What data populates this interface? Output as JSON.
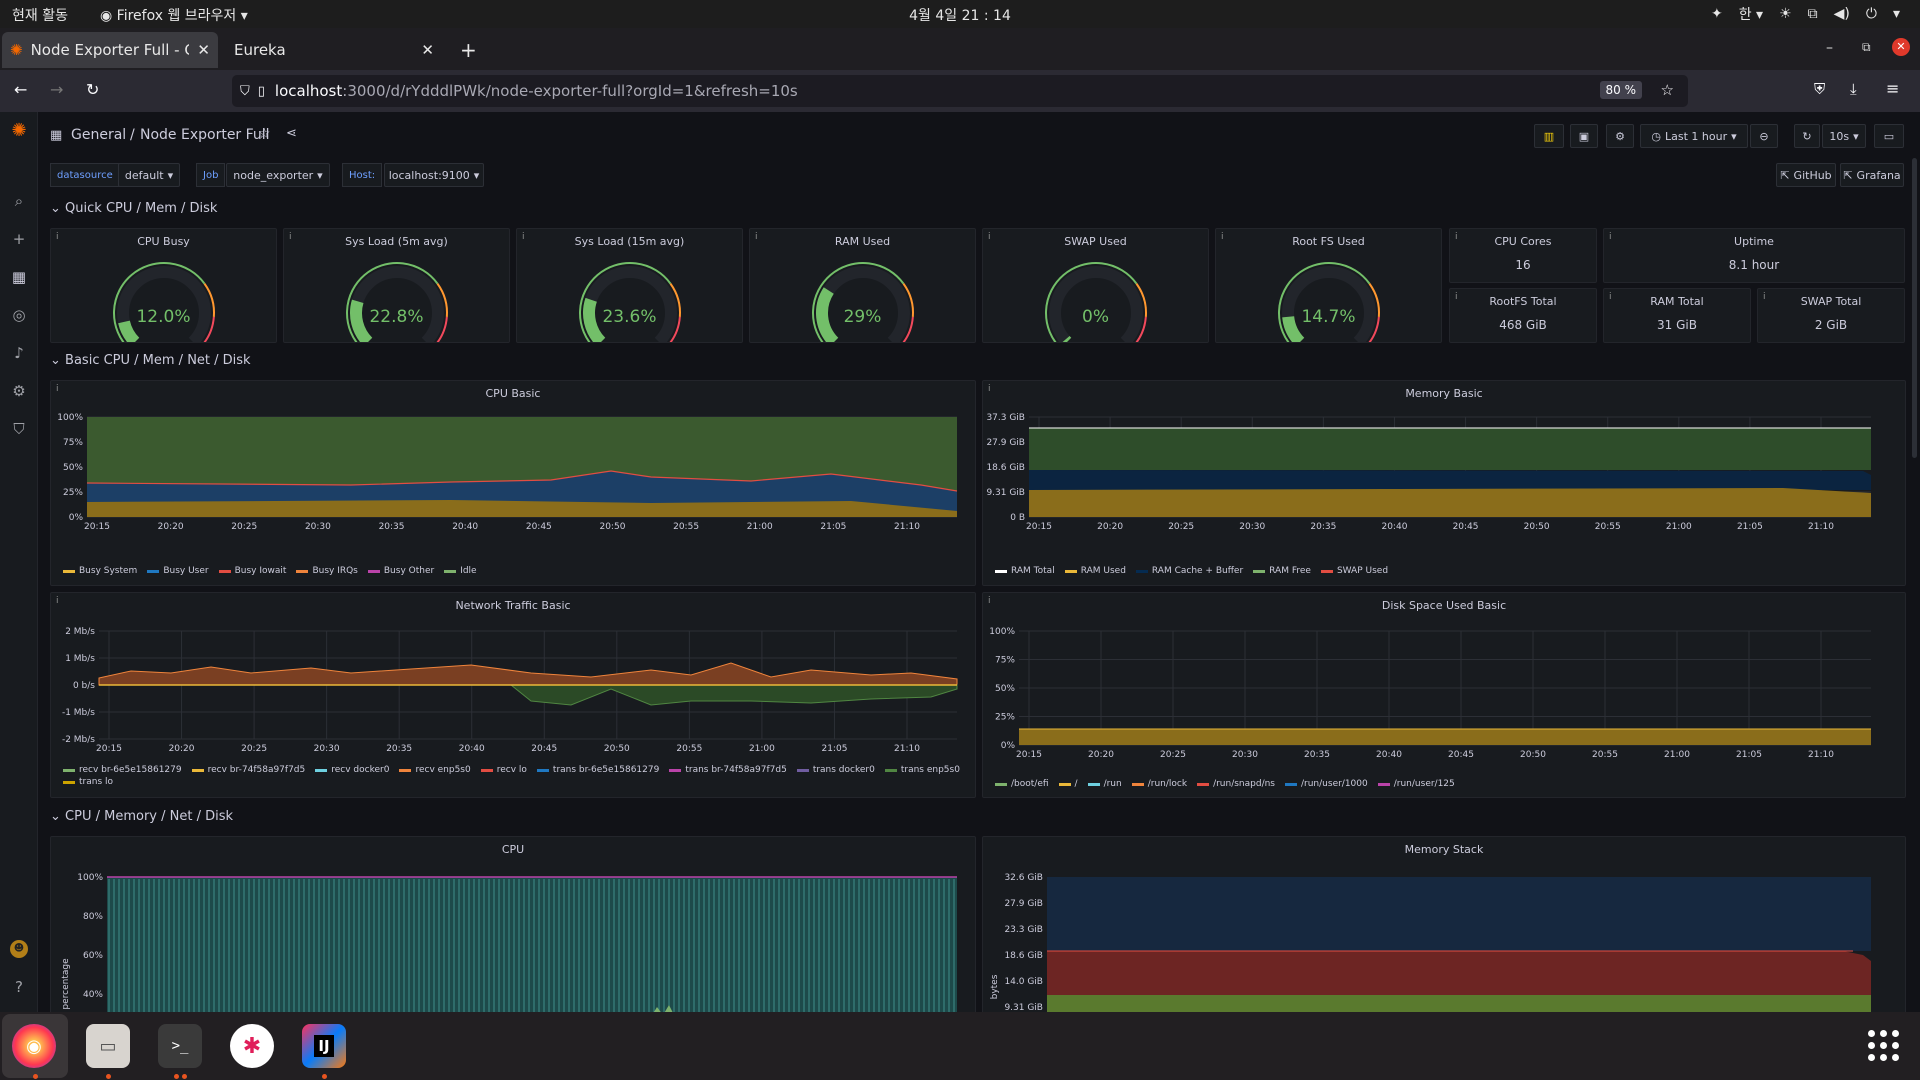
{
  "os": {
    "activities": "현재 활동",
    "app_menu": "Firefox 웹 브라우저",
    "clock": "4월 4일  21 : 14",
    "ime": "한"
  },
  "browser": {
    "tabs": [
      {
        "label": "Node Exporter Full - Graf"
      },
      {
        "label": "Eureka"
      }
    ],
    "url_host": "localhost",
    "url_path": ":3000/d/rYdddlPWk/node-exporter-full?orgId=1&refresh=10s",
    "zoom": "80 %"
  },
  "dashboard": {
    "breadcrumb_folder": "General",
    "breadcrumb_sep": "/",
    "title": "Node Exporter Full",
    "time_range": "Last 1 hour",
    "refresh": "10s",
    "links": {
      "github": "GitHub",
      "grafana": "Grafana"
    },
    "vars": {
      "datasource_label": "datasource",
      "datasource_value": "default",
      "job_label": "Job",
      "job_value": "node_exporter",
      "host_label": "Host:",
      "host_value": "localhost:9100"
    },
    "rows": {
      "r1": "Quick CPU / Mem / Disk",
      "r2": "Basic CPU / Mem / Net / Disk",
      "r3": "CPU / Memory / Net / Disk"
    },
    "gauges": [
      {
        "title": "CPU Busy",
        "value": "12.0%",
        "fraction": 0.12,
        "color": "#73bf69"
      },
      {
        "title": "Sys Load (5m avg)",
        "value": "22.8%",
        "fraction": 0.228,
        "color": "#73bf69"
      },
      {
        "title": "Sys Load (15m avg)",
        "value": "23.6%",
        "fraction": 0.236,
        "color": "#73bf69"
      },
      {
        "title": "RAM Used",
        "value": "29%",
        "fraction": 0.29,
        "color": "#73bf69"
      },
      {
        "title": "SWAP Used",
        "value": "0%",
        "fraction": 0.0,
        "color": "#73bf69"
      },
      {
        "title": "Root FS Used",
        "value": "14.7%",
        "fraction": 0.147,
        "color": "#73bf69"
      }
    ],
    "stats": {
      "cpu_cores": {
        "title": "CPU Cores",
        "value": "16"
      },
      "uptime": {
        "title": "Uptime",
        "value": "8.1 hour"
      },
      "rootfs_total": {
        "title": "RootFS Total",
        "value": "468 GiB"
      },
      "ram_total": {
        "title": "RAM Total",
        "value": "31 GiB"
      },
      "swap_total": {
        "title": "SWAP Total",
        "value": "2 GiB"
      }
    },
    "x_ticks": [
      "20:15",
      "20:20",
      "20:25",
      "20:30",
      "20:35",
      "20:40",
      "20:45",
      "20:50",
      "20:55",
      "21:00",
      "21:05",
      "21:10"
    ],
    "cpu_basic": {
      "title": "CPU Basic",
      "y_ticks": [
        "100%",
        "75%",
        "50%",
        "25%",
        "0%"
      ],
      "legend": [
        {
          "name": "Busy System",
          "color": "#eab839"
        },
        {
          "name": "Busy User",
          "color": "#1f78c1"
        },
        {
          "name": "Busy Iowait",
          "color": "#e24d42"
        },
        {
          "name": "Busy IRQs",
          "color": "#ef843c"
        },
        {
          "name": "Busy Other",
          "color": "#ba43a9"
        },
        {
          "name": "Idle",
          "color": "#7eb26d"
        }
      ]
    },
    "memory_basic": {
      "title": "Memory Basic",
      "y_ticks": [
        "37.3 GiB",
        "27.9 GiB",
        "18.6 GiB",
        "9.31 GiB",
        "0 B"
      ],
      "legend": [
        {
          "name": "RAM Total",
          "color": "#ffffff"
        },
        {
          "name": "RAM Used",
          "color": "#eab839"
        },
        {
          "name": "RAM Cache + Buffer",
          "color": "#052b51"
        },
        {
          "name": "RAM Free",
          "color": "#7eb26d"
        },
        {
          "name": "SWAP Used",
          "color": "#e24d42"
        }
      ]
    },
    "network_basic": {
      "title": "Network Traffic Basic",
      "y_ticks": [
        "2 Mb/s",
        "1 Mb/s",
        "0 b/s",
        "-1 Mb/s",
        "-2 Mb/s"
      ],
      "legend": [
        {
          "name": "recv br-6e5e15861279",
          "color": "#7eb26d"
        },
        {
          "name": "recv br-74f58a97f7d5",
          "color": "#eab839"
        },
        {
          "name": "recv docker0",
          "color": "#6ed0e0"
        },
        {
          "name": "recv enp5s0",
          "color": "#ef843c"
        },
        {
          "name": "recv lo",
          "color": "#e24d42"
        },
        {
          "name": "trans br-6e5e15861279",
          "color": "#1f78c1"
        },
        {
          "name": "trans br-74f58a97f7d5",
          "color": "#ba43a9"
        },
        {
          "name": "trans docker0",
          "color": "#705da0"
        },
        {
          "name": "trans enp5s0",
          "color": "#508642"
        },
        {
          "name": "trans lo",
          "color": "#cca300"
        }
      ]
    },
    "disk_basic": {
      "title": "Disk Space Used Basic",
      "y_ticks": [
        "100%",
        "75%",
        "50%",
        "25%",
        "0%"
      ],
      "legend": [
        {
          "name": "/boot/efi",
          "color": "#7eb26d"
        },
        {
          "name": "/",
          "color": "#eab839"
        },
        {
          "name": "/run",
          "color": "#6ed0e0"
        },
        {
          "name": "/run/lock",
          "color": "#ef843c"
        },
        {
          "name": "/run/snapd/ns",
          "color": "#e24d42"
        },
        {
          "name": "/run/user/1000",
          "color": "#1f78c1"
        },
        {
          "name": "/run/user/125",
          "color": "#ba43a9"
        }
      ]
    },
    "cpu_panel": {
      "title": "CPU",
      "y_label": "percentage",
      "y_ticks": [
        "100%",
        "80%",
        "60%",
        "40%"
      ]
    },
    "memory_stack": {
      "title": "Memory Stack",
      "y_label": "bytes",
      "y_ticks": [
        "32.6 GiB",
        "27.9 GiB",
        "23.3 GiB",
        "18.6 GiB",
        "14.0 GiB",
        "9.31 GiB"
      ]
    }
  }
}
